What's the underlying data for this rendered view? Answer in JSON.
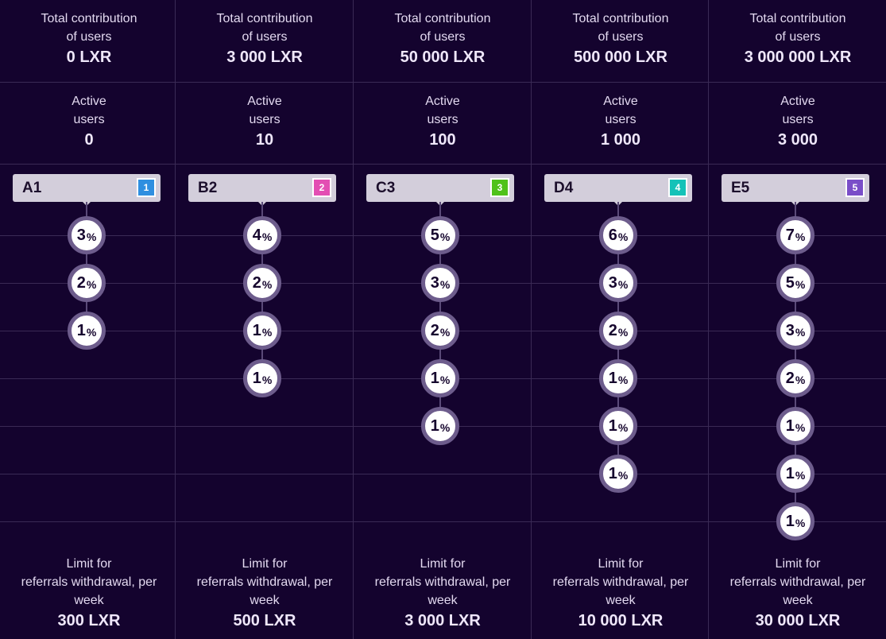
{
  "labels": {
    "contribution_line1": "Total contribution",
    "contribution_line2": "of users",
    "users_line1": "Active",
    "users_line2": "users",
    "limit_line1": "Limit for",
    "limit_line2": "referrals withdrawal, per",
    "limit_line3": "week",
    "percent_symbol": "%"
  },
  "columns": [
    {
      "contribution": "0 LXR",
      "active_users": "0",
      "level_name": "A1",
      "level_number": "1",
      "badge_color": "#2f8fe0",
      "percents": [
        "3",
        "2",
        "1"
      ],
      "limit": "300 LXR"
    },
    {
      "contribution": "3 000 LXR",
      "active_users": "10",
      "level_name": "B2",
      "level_number": "2",
      "badge_color": "#e34eb3",
      "percents": [
        "4",
        "2",
        "1",
        "1"
      ],
      "limit": "500 LXR"
    },
    {
      "contribution": "50 000 LXR",
      "active_users": "100",
      "level_name": "C3",
      "level_number": "3",
      "badge_color": "#4fc21a",
      "percents": [
        "5",
        "3",
        "2",
        "1",
        "1"
      ],
      "limit": "3 000 LXR"
    },
    {
      "contribution": "500 000 LXR",
      "active_users": "1 000",
      "level_name": "D4",
      "level_number": "4",
      "badge_color": "#14c2b8",
      "percents": [
        "6",
        "3",
        "2",
        "1",
        "1",
        "1"
      ],
      "limit": "10 000 LXR"
    },
    {
      "contribution": "3 000 000 LXR",
      "active_users": "3 000",
      "level_name": "E5",
      "level_number": "5",
      "badge_color": "#7a4ec8",
      "percents": [
        "7",
        "5",
        "3",
        "2",
        "1",
        "1",
        "1"
      ],
      "limit": "30 000 LXR"
    }
  ]
}
